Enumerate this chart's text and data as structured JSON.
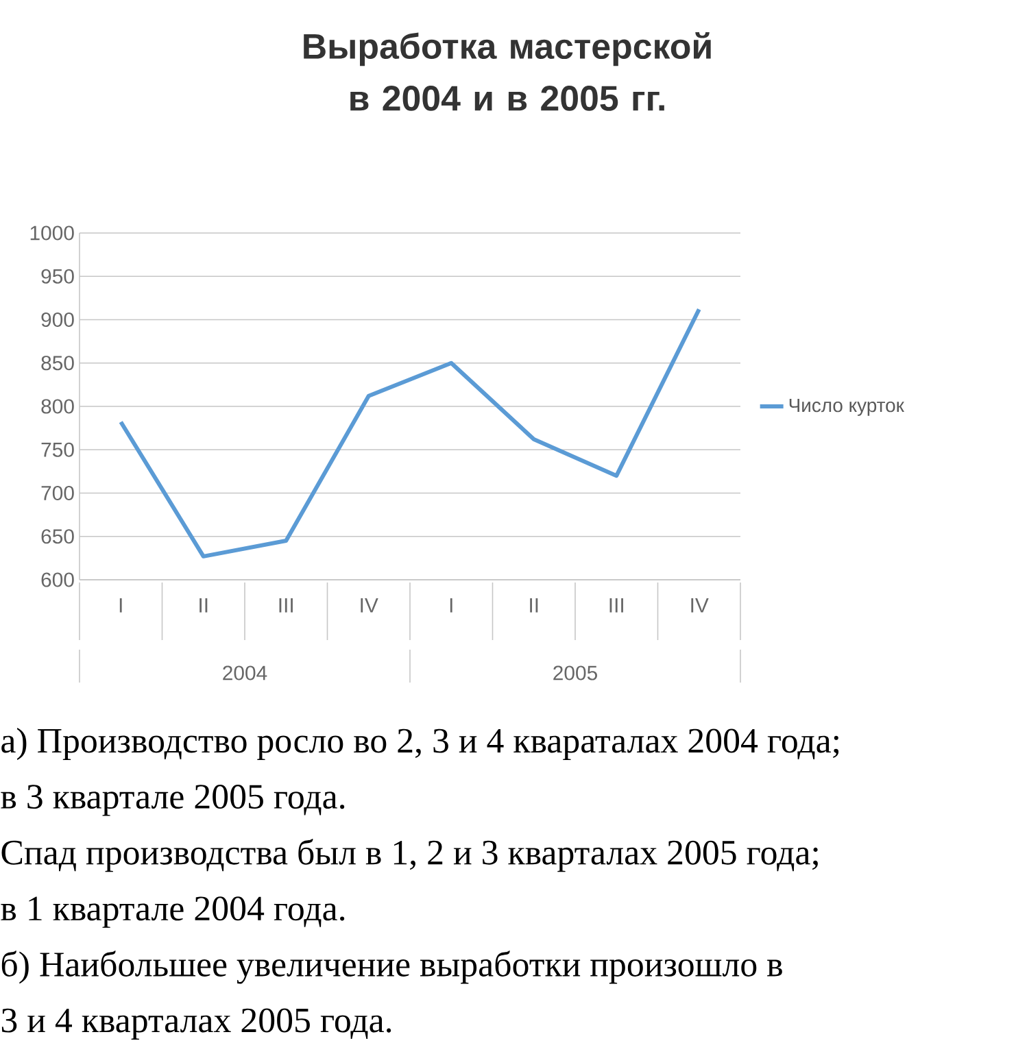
{
  "chart_data": {
    "type": "line",
    "title": "Выработка мастерской в 2004 и в 2005 гг.",
    "categories": [
      "I",
      "II",
      "III",
      "IV",
      "I",
      "II",
      "III",
      "IV"
    ],
    "series": [
      {
        "name": "Число курток",
        "color": "#5b9bd5",
        "values": [
          782,
          627,
          645,
          812,
          850,
          762,
          720,
          912
        ]
      }
    ],
    "ylim": [
      600,
      1000
    ],
    "yticks": [
      600,
      650,
      700,
      750,
      800,
      850,
      900,
      950,
      1000
    ],
    "grid": "y",
    "legend": "right",
    "marker": "none",
    "line_style": "solid",
    "annotations": [
      "2004",
      "2005",
      "а) Производство росло во 2, 3 и 4 квараталах 2004 года;",
      "в 3 квартале 2005 года.",
      "Спад производства был в 1, 2 и 3 кварталах 2005 года;",
      "в 1 квартале 2004 года.",
      "б) Наибольшее увеличение выработки произошло в",
      "3 и 4 кварталах 2005 года."
    ]
  }
}
